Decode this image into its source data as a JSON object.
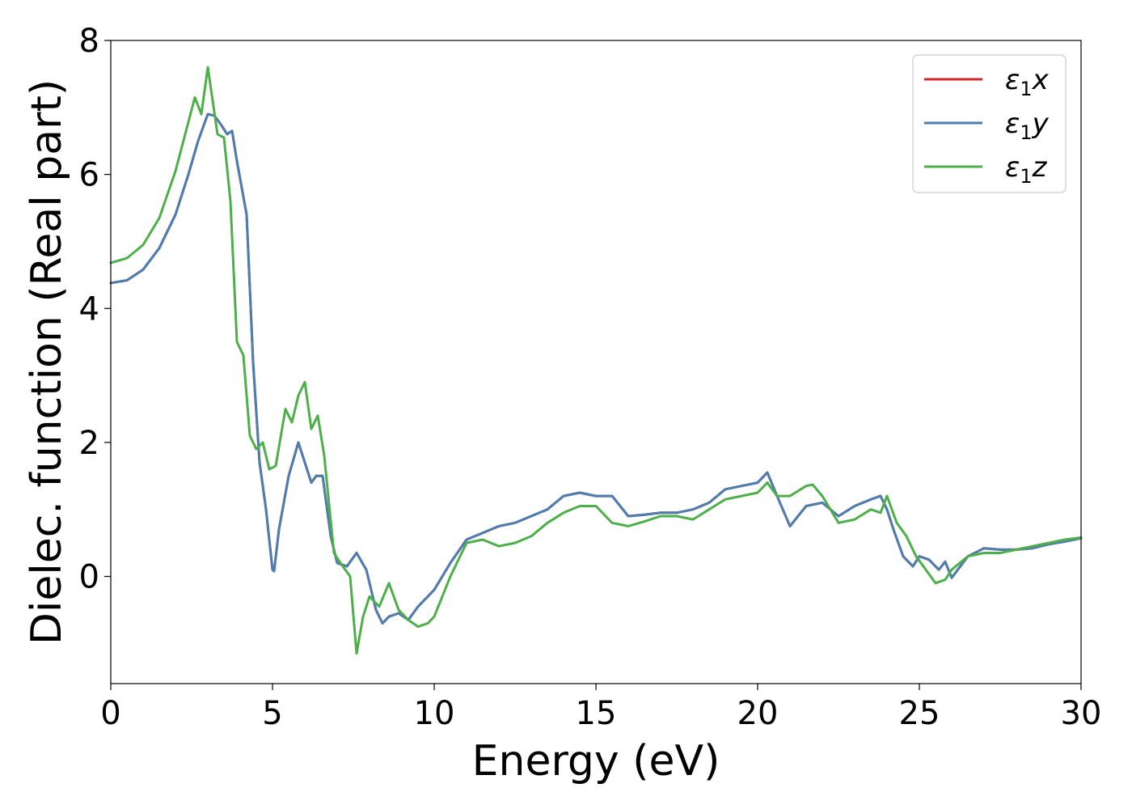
{
  "chart_data": {
    "type": "line",
    "title": "",
    "xlabel": "Energy (eV)",
    "ylabel": "Dielec. function (Real part)",
    "xlim": [
      0,
      30
    ],
    "ylim": [
      -1.6,
      8
    ],
    "xticks": [
      0,
      5,
      10,
      15,
      20,
      25,
      30
    ],
    "yticks": [
      0,
      2,
      4,
      6,
      8
    ],
    "xtick_labels": [
      "0",
      "5",
      "10",
      "15",
      "20",
      "25",
      "30"
    ],
    "ytick_labels": [
      "0",
      "2",
      "4",
      "6",
      "8"
    ],
    "grid": false,
    "legend_position": "top-right",
    "series": [
      {
        "name": "ε₁x",
        "legend": {
          "symbol": "ε",
          "sub": "1",
          "var": "x"
        },
        "color": "#d62728",
        "x": [
          0,
          0.5,
          1.0,
          1.5,
          2.0,
          2.4,
          2.7,
          3.0,
          3.2,
          3.4,
          3.6,
          3.75,
          3.9,
          4.2,
          4.4,
          4.6,
          4.8,
          5.0,
          5.05,
          5.2,
          5.5,
          5.8,
          6.0,
          6.2,
          6.35,
          6.55,
          6.8,
          7.0,
          7.3,
          7.6,
          7.9,
          8.2,
          8.4,
          8.6,
          8.9,
          9.2,
          9.5,
          10.0,
          10.5,
          11.0,
          11.5,
          12.0,
          12.5,
          13.0,
          13.5,
          14.0,
          14.5,
          15.0,
          15.5,
          16.0,
          16.5,
          17.0,
          17.5,
          18.0,
          18.5,
          19.0,
          19.5,
          20.0,
          20.3,
          20.6,
          21.0,
          21.5,
          22.0,
          22.5,
          23.0,
          23.5,
          23.8,
          24.0,
          24.2,
          24.5,
          24.8,
          25.0,
          25.3,
          25.6,
          25.8,
          26.0,
          26.5,
          27.0,
          27.5,
          28.0,
          28.5,
          29.0,
          29.5,
          30.0
        ],
        "y": [
          4.38,
          4.42,
          4.58,
          4.9,
          5.4,
          6.0,
          6.5,
          6.9,
          6.88,
          6.75,
          6.6,
          6.65,
          6.2,
          5.4,
          3.2,
          1.7,
          1.0,
          0.1,
          0.08,
          0.7,
          1.5,
          2.0,
          1.7,
          1.4,
          1.5,
          1.5,
          0.6,
          0.2,
          0.15,
          0.35,
          0.1,
          -0.5,
          -0.7,
          -0.6,
          -0.55,
          -0.65,
          -0.45,
          -0.2,
          0.2,
          0.55,
          0.65,
          0.75,
          0.8,
          0.9,
          1.0,
          1.2,
          1.25,
          1.2,
          1.2,
          0.9,
          0.92,
          0.95,
          0.95,
          1.0,
          1.1,
          1.3,
          1.35,
          1.4,
          1.55,
          1.2,
          0.75,
          1.05,
          1.1,
          0.9,
          1.05,
          1.15,
          1.2,
          1.0,
          0.7,
          0.3,
          0.15,
          0.3,
          0.25,
          0.1,
          0.22,
          -0.02,
          0.3,
          0.42,
          0.4,
          0.4,
          0.42,
          0.48,
          0.52,
          0.57
        ]
      },
      {
        "name": "ε₁y",
        "legend": {
          "symbol": "ε",
          "sub": "1",
          "var": "y"
        },
        "color": "#4c7eb0",
        "x": [
          0,
          0.5,
          1.0,
          1.5,
          2.0,
          2.4,
          2.7,
          3.0,
          3.2,
          3.4,
          3.6,
          3.75,
          3.9,
          4.2,
          4.4,
          4.6,
          4.8,
          5.0,
          5.05,
          5.2,
          5.5,
          5.8,
          6.0,
          6.2,
          6.35,
          6.55,
          6.8,
          7.0,
          7.3,
          7.6,
          7.9,
          8.2,
          8.4,
          8.6,
          8.9,
          9.2,
          9.5,
          10.0,
          10.5,
          11.0,
          11.5,
          12.0,
          12.5,
          13.0,
          13.5,
          14.0,
          14.5,
          15.0,
          15.5,
          16.0,
          16.5,
          17.0,
          17.5,
          18.0,
          18.5,
          19.0,
          19.5,
          20.0,
          20.3,
          20.6,
          21.0,
          21.5,
          22.0,
          22.5,
          23.0,
          23.5,
          23.8,
          24.0,
          24.2,
          24.5,
          24.8,
          25.0,
          25.3,
          25.6,
          25.8,
          26.0,
          26.5,
          27.0,
          27.5,
          28.0,
          28.5,
          29.0,
          29.5,
          30.0
        ],
        "y": [
          4.38,
          4.42,
          4.58,
          4.9,
          5.4,
          6.0,
          6.5,
          6.9,
          6.88,
          6.75,
          6.6,
          6.65,
          6.2,
          5.4,
          3.2,
          1.7,
          1.0,
          0.1,
          0.08,
          0.7,
          1.5,
          2.0,
          1.7,
          1.4,
          1.5,
          1.5,
          0.6,
          0.2,
          0.15,
          0.35,
          0.1,
          -0.5,
          -0.7,
          -0.6,
          -0.55,
          -0.65,
          -0.45,
          -0.2,
          0.2,
          0.55,
          0.65,
          0.75,
          0.8,
          0.9,
          1.0,
          1.2,
          1.25,
          1.2,
          1.2,
          0.9,
          0.92,
          0.95,
          0.95,
          1.0,
          1.1,
          1.3,
          1.35,
          1.4,
          1.55,
          1.2,
          0.75,
          1.05,
          1.1,
          0.9,
          1.05,
          1.15,
          1.2,
          1.0,
          0.7,
          0.3,
          0.15,
          0.3,
          0.25,
          0.1,
          0.22,
          -0.02,
          0.3,
          0.42,
          0.4,
          0.4,
          0.42,
          0.48,
          0.52,
          0.57
        ]
      },
      {
        "name": "ε₁z",
        "legend": {
          "symbol": "ε",
          "sub": "1",
          "var": "z"
        },
        "color": "#4daf4a",
        "x": [
          0,
          0.5,
          1.0,
          1.5,
          2.0,
          2.3,
          2.6,
          2.8,
          3.0,
          3.3,
          3.5,
          3.7,
          3.9,
          4.1,
          4.3,
          4.5,
          4.7,
          4.9,
          5.1,
          5.4,
          5.6,
          5.8,
          6.0,
          6.2,
          6.4,
          6.6,
          6.9,
          7.1,
          7.4,
          7.6,
          7.8,
          8.0,
          8.3,
          8.6,
          8.9,
          9.2,
          9.5,
          9.8,
          10.0,
          10.5,
          11.0,
          11.5,
          12.0,
          12.5,
          13.0,
          13.5,
          14.0,
          14.5,
          15.0,
          15.5,
          16.0,
          16.5,
          17.0,
          17.5,
          18.0,
          18.5,
          19.0,
          19.5,
          20.0,
          20.3,
          20.6,
          21.0,
          21.5,
          21.7,
          22.0,
          22.5,
          23.0,
          23.5,
          23.8,
          24.0,
          24.3,
          24.6,
          24.9,
          25.2,
          25.5,
          25.8,
          26.0,
          26.5,
          27.0,
          27.5,
          28.0,
          28.5,
          29.0,
          29.5,
          30.0
        ],
        "y": [
          4.68,
          4.75,
          4.95,
          5.35,
          6.05,
          6.6,
          7.15,
          6.9,
          7.6,
          6.6,
          6.55,
          5.6,
          3.5,
          3.3,
          2.1,
          1.9,
          2.0,
          1.6,
          1.65,
          2.5,
          2.3,
          2.7,
          2.9,
          2.2,
          2.4,
          1.8,
          0.35,
          0.2,
          0.0,
          -1.15,
          -0.6,
          -0.3,
          -0.45,
          -0.1,
          -0.5,
          -0.65,
          -0.75,
          -0.7,
          -0.6,
          0.0,
          0.5,
          0.55,
          0.45,
          0.5,
          0.6,
          0.8,
          0.95,
          1.05,
          1.05,
          0.8,
          0.75,
          0.82,
          0.9,
          0.9,
          0.85,
          1.0,
          1.15,
          1.2,
          1.25,
          1.4,
          1.2,
          1.2,
          1.35,
          1.37,
          1.2,
          0.8,
          0.85,
          1.0,
          0.95,
          1.2,
          0.8,
          0.6,
          0.3,
          0.1,
          -0.1,
          -0.05,
          0.1,
          0.3,
          0.35,
          0.35,
          0.4,
          0.45,
          0.5,
          0.55,
          0.58
        ]
      }
    ]
  }
}
